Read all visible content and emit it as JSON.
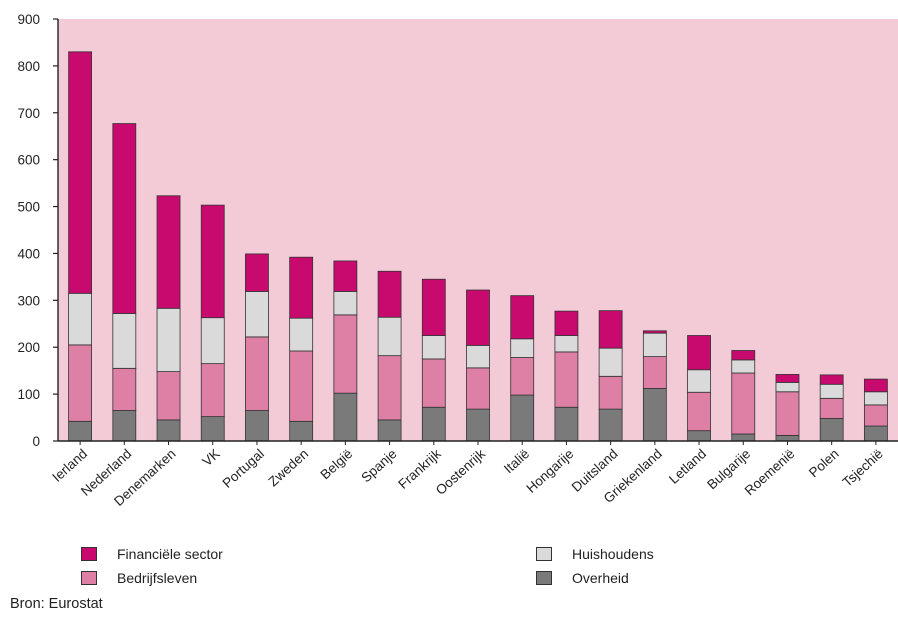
{
  "chart_data": {
    "type": "bar",
    "stacked": true,
    "ylim": [
      0,
      900
    ],
    "yticks": [
      "0",
      "100",
      "200",
      "300",
      "400",
      "500",
      "600",
      "700",
      "800",
      "900"
    ],
    "grid": false,
    "plot_background": "#f2cbd7",
    "categories": [
      "Ierland",
      "Nederland",
      "Denemarken",
      "VK",
      "Portugal",
      "Zweden",
      "België",
      "Spanje",
      "Frankrijk",
      "Oostenrijk",
      "Italië",
      "Hongarije",
      "Duitsland",
      "Griekenland",
      "Letland",
      "Bulgarije",
      "Roemenië",
      "Polen",
      "Tsjechië"
    ],
    "series": [
      {
        "name": "Overheid",
        "color": "#7a7a7a",
        "values": [
          42,
          65,
          45,
          52,
          65,
          42,
          102,
          45,
          72,
          68,
          98,
          72,
          68,
          112,
          22,
          15,
          12,
          48,
          32
        ]
      },
      {
        "name": "Bedrijfsleven",
        "color": "#de7fa5",
        "values": [
          163,
          90,
          103,
          113,
          157,
          150,
          167,
          137,
          103,
          88,
          80,
          118,
          70,
          68,
          82,
          130,
          93,
          43,
          45
        ]
      },
      {
        "name": "Huishoudens",
        "color": "#dadada",
        "values": [
          110,
          117,
          135,
          98,
          97,
          70,
          50,
          82,
          50,
          48,
          40,
          35,
          60,
          50,
          48,
          28,
          20,
          30,
          28
        ]
      },
      {
        "name": "Financiële sector",
        "color": "#c8096d",
        "values": [
          515,
          405,
          240,
          240,
          80,
          130,
          65,
          98,
          120,
          118,
          92,
          52,
          80,
          5,
          73,
          20,
          17,
          20,
          27
        ]
      }
    ],
    "legend": {
      "position": "bottom",
      "items": [
        {
          "label": "Financiële sector",
          "color": "#c8096d"
        },
        {
          "label": "Huishoudens",
          "color": "#dadada"
        },
        {
          "label": "Bedrijfsleven",
          "color": "#de7fa5"
        },
        {
          "label": "Overheid",
          "color": "#7a7a7a"
        }
      ]
    },
    "source": "Bron: Eurostat"
  }
}
